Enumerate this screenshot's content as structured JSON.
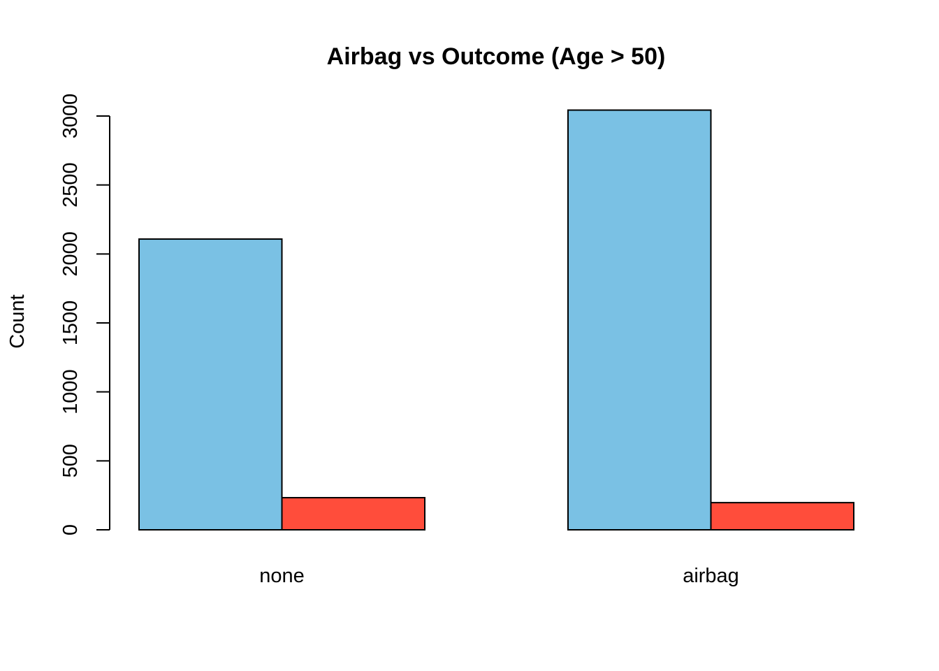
{
  "chart_data": {
    "type": "bar",
    "title": "Airbag vs Outcome (Age > 50)",
    "xlabel": "",
    "ylabel": "Count",
    "categories": [
      "none",
      "airbag"
    ],
    "series": [
      {
        "values": [
          2108,
          3043
        ],
        "color": "#7AC1E4"
      },
      {
        "values": [
          233,
          197
        ],
        "color": "#FF4D3B"
      }
    ],
    "yticks": [
      0,
      500,
      1000,
      1500,
      2000,
      2500,
      3000
    ],
    "ylim": [
      0,
      3043
    ],
    "grid": false,
    "legend": "none"
  }
}
